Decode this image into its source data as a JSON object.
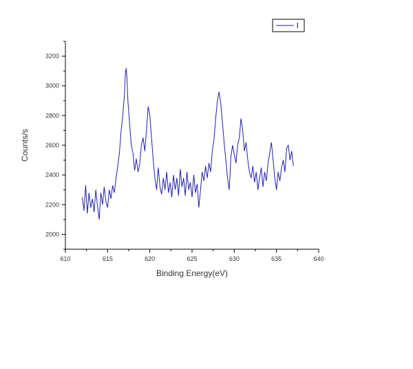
{
  "chart_data": {
    "type": "line",
    "xlabel": "Binding Energy(eV)",
    "ylabel": "Counts/s",
    "xlim": [
      610,
      640
    ],
    "ylim": [
      1900,
      3300
    ],
    "xticks": [
      610,
      615,
      620,
      625,
      630,
      635,
      640
    ],
    "yticks": [
      2000,
      2200,
      2400,
      2600,
      2800,
      3000,
      3200
    ],
    "grid": false,
    "legend": "top-right",
    "colors": {
      "series": "#1c1cb4",
      "axis": "#000000"
    },
    "series": [
      {
        "name": "l",
        "x": [
          612.0,
          612.2,
          612.4,
          612.6,
          612.8,
          613.0,
          613.2,
          613.4,
          613.6,
          613.8,
          614.0,
          614.2,
          614.4,
          614.6,
          614.8,
          615.0,
          615.2,
          615.4,
          615.6,
          615.8,
          616.0,
          616.2,
          616.4,
          616.6,
          616.8,
          617.0,
          617.1,
          617.2,
          617.3,
          617.4,
          617.6,
          617.8,
          618.0,
          618.2,
          618.4,
          618.6,
          618.8,
          619.0,
          619.2,
          619.4,
          619.6,
          619.8,
          620.0,
          620.2,
          620.4,
          620.6,
          620.8,
          621.0,
          621.2,
          621.4,
          621.6,
          621.8,
          622.0,
          622.2,
          622.4,
          622.6,
          622.8,
          623.0,
          623.2,
          623.4,
          623.6,
          623.8,
          624.0,
          624.2,
          624.4,
          624.6,
          624.8,
          625.0,
          625.2,
          625.4,
          625.6,
          625.8,
          626.0,
          626.2,
          626.4,
          626.6,
          626.8,
          627.0,
          627.2,
          627.4,
          627.6,
          627.8,
          628.0,
          628.2,
          628.4,
          628.6,
          628.8,
          629.0,
          629.2,
          629.4,
          629.6,
          629.8,
          630.0,
          630.2,
          630.4,
          630.6,
          630.8,
          631.0,
          631.2,
          631.4,
          631.6,
          631.8,
          632.0,
          632.2,
          632.4,
          632.6,
          632.8,
          633.0,
          633.2,
          633.4,
          633.6,
          633.8,
          634.0,
          634.2,
          634.4,
          634.6,
          634.8,
          635.0,
          635.2,
          635.4,
          635.6,
          635.8,
          636.0,
          636.2,
          636.4,
          636.6,
          636.8,
          637.0
        ],
        "y": [
          2250,
          2160,
          2330,
          2140,
          2280,
          2180,
          2240,
          2150,
          2300,
          2190,
          2100,
          2280,
          2200,
          2320,
          2220,
          2180,
          2300,
          2240,
          2330,
          2280,
          2380,
          2460,
          2550,
          2700,
          2800,
          2950,
          3080,
          3120,
          3050,
          2900,
          2750,
          2600,
          2550,
          2430,
          2510,
          2420,
          2470,
          2600,
          2650,
          2560,
          2700,
          2860,
          2800,
          2650,
          2500,
          2380,
          2300,
          2450,
          2320,
          2270,
          2380,
          2300,
          2420,
          2280,
          2350,
          2250,
          2400,
          2300,
          2380,
          2260,
          2440,
          2320,
          2380,
          2260,
          2420,
          2300,
          2350,
          2250,
          2400,
          2280,
          2340,
          2180,
          2300,
          2420,
          2360,
          2460,
          2380,
          2480,
          2420,
          2560,
          2640,
          2780,
          2900,
          2960,
          2880,
          2750,
          2620,
          2500,
          2380,
          2300,
          2520,
          2600,
          2540,
          2480,
          2600,
          2650,
          2780,
          2700,
          2560,
          2620,
          2500,
          2420,
          2380,
          2460,
          2350,
          2420,
          2300,
          2380,
          2450,
          2320,
          2420,
          2360,
          2480,
          2550,
          2620,
          2500,
          2380,
          2300,
          2420,
          2360,
          2450,
          2500,
          2420,
          2580,
          2600,
          2500,
          2560,
          2460
        ]
      }
    ]
  }
}
